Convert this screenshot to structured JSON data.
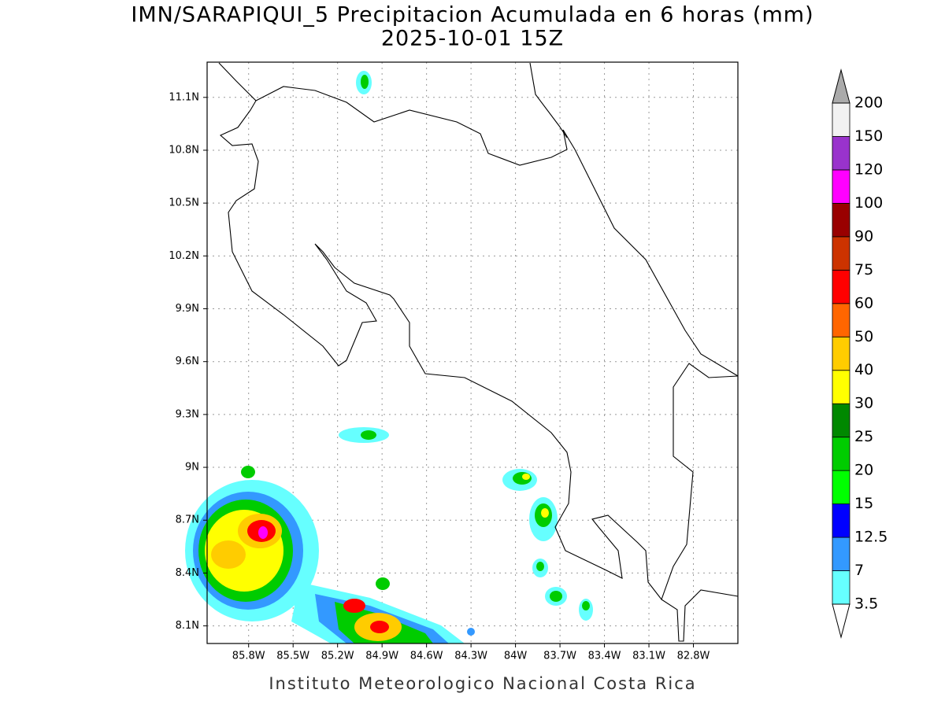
{
  "map": {
    "title": "IMN/SARAPIQUI_5 Precipitacion Acumulada en 6 horas (mm)",
    "subtitle": "2025-10-01 15Z",
    "lon_range": [
      -86.08,
      -82.5
    ],
    "lat_range": [
      8.0,
      11.3
    ],
    "lon_ticks": [
      {
        "value": -85.8,
        "label": "85.8W"
      },
      {
        "value": -85.5,
        "label": "85.5W"
      },
      {
        "value": -85.2,
        "label": "85.2W"
      },
      {
        "value": -84.9,
        "label": "84.9W"
      },
      {
        "value": -84.6,
        "label": "84.6W"
      },
      {
        "value": -84.3,
        "label": "84.3W"
      },
      {
        "value": -84.0,
        "label": "84W"
      },
      {
        "value": -83.7,
        "label": "83.7W"
      },
      {
        "value": -83.4,
        "label": "83.4W"
      },
      {
        "value": -83.1,
        "label": "83.1W"
      },
      {
        "value": -82.8,
        "label": "82.8W"
      }
    ],
    "lat_ticks": [
      {
        "value": 8.1,
        "label": "8.1N"
      },
      {
        "value": 8.4,
        "label": "8.4N"
      },
      {
        "value": 8.7,
        "label": "8.7N"
      },
      {
        "value": 9.0,
        "label": "9N"
      },
      {
        "value": 9.3,
        "label": "9.3N"
      },
      {
        "value": 9.6,
        "label": "9.6N"
      },
      {
        "value": 9.9,
        "label": "9.9N"
      },
      {
        "value": 10.2,
        "label": "10.2N"
      },
      {
        "value": 10.5,
        "label": "10.5N"
      },
      {
        "value": 10.8,
        "label": "10.8N"
      },
      {
        "value": 11.1,
        "label": "11.1N"
      }
    ],
    "grid": true,
    "colorbar": {
      "levels": [
        3.5,
        7,
        12.5,
        15,
        20,
        25,
        30,
        40,
        50,
        60,
        75,
        90,
        100,
        120,
        150,
        200
      ],
      "colors": [
        "#66ffff",
        "#3399ff",
        "#0000ff",
        "#00ff00",
        "#00cc00",
        "#008800",
        "#ffff00",
        "#ffcc00",
        "#ff6600",
        "#ff0000",
        "#cc3300",
        "#990000",
        "#ff00ff",
        "#9933cc",
        "#f2f2f2"
      ],
      "under_color": "#ffffff",
      "over_color": "#aaaaaa"
    },
    "footer": "Instituto Meteorologico Nacional Costa Rica"
  }
}
